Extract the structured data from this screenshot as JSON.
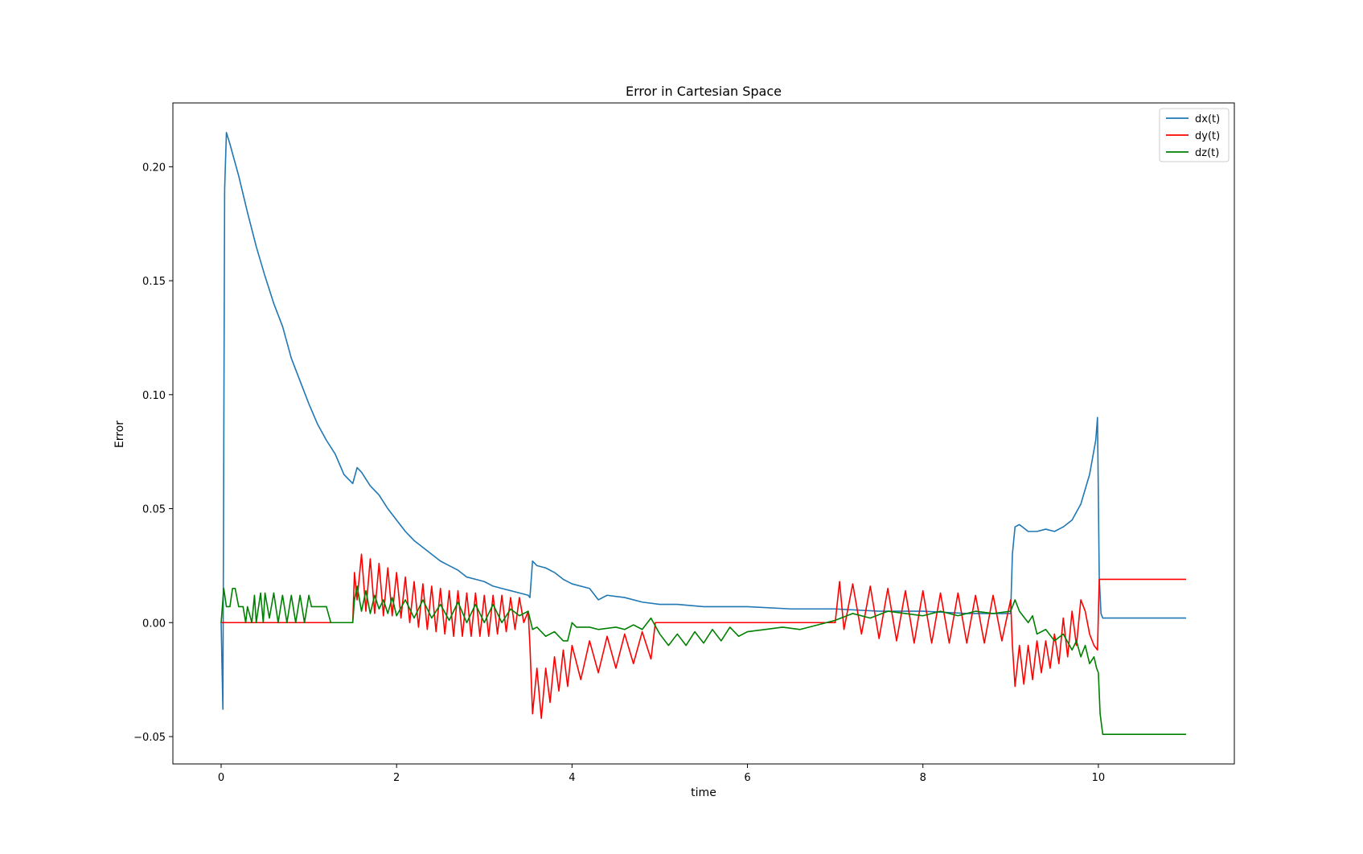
{
  "chart_data": {
    "type": "line",
    "title": "Error in Cartesian Space",
    "xlabel": "time",
    "ylabel": "Error",
    "xlim": [
      -0.55,
      11.55
    ],
    "ylim": [
      -0.062,
      0.228
    ],
    "xticks": [
      0,
      2,
      4,
      6,
      8,
      10
    ],
    "xtick_labels": [
      "0",
      "2",
      "4",
      "6",
      "8",
      "10"
    ],
    "yticks": [
      -0.05,
      0.0,
      0.05,
      0.1,
      0.15,
      0.2
    ],
    "ytick_labels": [
      "−0.05",
      "0.00",
      "0.05",
      "0.10",
      "0.15",
      "0.20"
    ],
    "grid": false,
    "legend": "top-right",
    "series": [
      {
        "name": "dx(t)",
        "color": "#1f77b4",
        "points": [
          [
            0,
            0
          ],
          [
            0.02,
            -0.038
          ],
          [
            0.04,
            0.19
          ],
          [
            0.06,
            0.215
          ],
          [
            0.1,
            0.21
          ],
          [
            0.15,
            0.203
          ],
          [
            0.2,
            0.196
          ],
          [
            0.3,
            0.18
          ],
          [
            0.4,
            0.165
          ],
          [
            0.5,
            0.152
          ],
          [
            0.6,
            0.14
          ],
          [
            0.7,
            0.13
          ],
          [
            0.8,
            0.116
          ],
          [
            0.9,
            0.106
          ],
          [
            1.0,
            0.096
          ],
          [
            1.1,
            0.087
          ],
          [
            1.2,
            0.08
          ],
          [
            1.3,
            0.074
          ],
          [
            1.4,
            0.065
          ],
          [
            1.5,
            0.061
          ],
          [
            1.55,
            0.068
          ],
          [
            1.6,
            0.066
          ],
          [
            1.7,
            0.06
          ],
          [
            1.8,
            0.056
          ],
          [
            1.9,
            0.05
          ],
          [
            2.0,
            0.045
          ],
          [
            2.1,
            0.04
          ],
          [
            2.2,
            0.036
          ],
          [
            2.3,
            0.033
          ],
          [
            2.4,
            0.03
          ],
          [
            2.5,
            0.027
          ],
          [
            2.6,
            0.025
          ],
          [
            2.7,
            0.023
          ],
          [
            2.8,
            0.02
          ],
          [
            2.9,
            0.019
          ],
          [
            3.0,
            0.018
          ],
          [
            3.1,
            0.016
          ],
          [
            3.2,
            0.015
          ],
          [
            3.3,
            0.014
          ],
          [
            3.4,
            0.013
          ],
          [
            3.5,
            0.012
          ],
          [
            3.52,
            0.011
          ],
          [
            3.55,
            0.027
          ],
          [
            3.6,
            0.025
          ],
          [
            3.7,
            0.024
          ],
          [
            3.8,
            0.022
          ],
          [
            3.9,
            0.019
          ],
          [
            4.0,
            0.017
          ],
          [
            4.2,
            0.015
          ],
          [
            4.3,
            0.01
          ],
          [
            4.4,
            0.012
          ],
          [
            4.6,
            0.011
          ],
          [
            4.8,
            0.009
          ],
          [
            5.0,
            0.008
          ],
          [
            5.2,
            0.008
          ],
          [
            5.5,
            0.007
          ],
          [
            6.0,
            0.007
          ],
          [
            6.5,
            0.006
          ],
          [
            7.0,
            0.006
          ],
          [
            7.5,
            0.005
          ],
          [
            8.0,
            0.005
          ],
          [
            8.5,
            0.004
          ],
          [
            9.0,
            0.004
          ],
          [
            9.02,
            0.03
          ],
          [
            9.05,
            0.042
          ],
          [
            9.1,
            0.043
          ],
          [
            9.2,
            0.04
          ],
          [
            9.3,
            0.04
          ],
          [
            9.4,
            0.041
          ],
          [
            9.5,
            0.04
          ],
          [
            9.6,
            0.042
          ],
          [
            9.7,
            0.045
          ],
          [
            9.8,
            0.052
          ],
          [
            9.9,
            0.065
          ],
          [
            9.97,
            0.08
          ],
          [
            9.99,
            0.09
          ],
          [
            10.01,
            0.02
          ],
          [
            10.03,
            0.004
          ],
          [
            10.05,
            0.002
          ],
          [
            11.0,
            0.002
          ]
        ]
      },
      {
        "name": "dy(t)",
        "color": "#ff0000",
        "points": [
          [
            0,
            0
          ],
          [
            1.5,
            0
          ],
          [
            1.52,
            0.022
          ],
          [
            1.55,
            0.01
          ],
          [
            1.6,
            0.03
          ],
          [
            1.65,
            0.005
          ],
          [
            1.7,
            0.028
          ],
          [
            1.75,
            0.004
          ],
          [
            1.8,
            0.026
          ],
          [
            1.85,
            0.003
          ],
          [
            1.9,
            0.024
          ],
          [
            1.95,
            0.003
          ],
          [
            2.0,
            0.022
          ],
          [
            2.05,
            0.002
          ],
          [
            2.1,
            0.02
          ],
          [
            2.15,
            0.0
          ],
          [
            2.2,
            0.018
          ],
          [
            2.25,
            -0.002
          ],
          [
            2.3,
            0.017
          ],
          [
            2.35,
            -0.003
          ],
          [
            2.4,
            0.016
          ],
          [
            2.45,
            -0.004
          ],
          [
            2.5,
            0.015
          ],
          [
            2.55,
            -0.005
          ],
          [
            2.6,
            0.014
          ],
          [
            2.65,
            -0.006
          ],
          [
            2.7,
            0.014
          ],
          [
            2.75,
            -0.006
          ],
          [
            2.8,
            0.013
          ],
          [
            2.85,
            -0.006
          ],
          [
            2.9,
            0.013
          ],
          [
            2.95,
            -0.006
          ],
          [
            3.0,
            0.012
          ],
          [
            3.05,
            -0.006
          ],
          [
            3.1,
            0.012
          ],
          [
            3.15,
            -0.005
          ],
          [
            3.2,
            0.012
          ],
          [
            3.25,
            -0.004
          ],
          [
            3.3,
            0.011
          ],
          [
            3.35,
            -0.003
          ],
          [
            3.4,
            0.011
          ],
          [
            3.45,
            0.0
          ],
          [
            3.5,
            0.005
          ],
          [
            3.52,
            -0.01
          ],
          [
            3.55,
            -0.04
          ],
          [
            3.6,
            -0.02
          ],
          [
            3.65,
            -0.042
          ],
          [
            3.7,
            -0.02
          ],
          [
            3.75,
            -0.035
          ],
          [
            3.8,
            -0.015
          ],
          [
            3.85,
            -0.03
          ],
          [
            3.9,
            -0.012
          ],
          [
            3.95,
            -0.028
          ],
          [
            4.0,
            -0.01
          ],
          [
            4.1,
            -0.025
          ],
          [
            4.2,
            -0.008
          ],
          [
            4.3,
            -0.022
          ],
          [
            4.4,
            -0.006
          ],
          [
            4.5,
            -0.02
          ],
          [
            4.6,
            -0.005
          ],
          [
            4.7,
            -0.018
          ],
          [
            4.8,
            -0.004
          ],
          [
            4.9,
            -0.016
          ],
          [
            4.95,
            0.0
          ],
          [
            5.0,
            0.0
          ],
          [
            7.0,
            0.0
          ],
          [
            7.05,
            0.018
          ],
          [
            7.1,
            -0.003
          ],
          [
            7.2,
            0.017
          ],
          [
            7.3,
            -0.005
          ],
          [
            7.4,
            0.016
          ],
          [
            7.5,
            -0.007
          ],
          [
            7.6,
            0.015
          ],
          [
            7.7,
            -0.008
          ],
          [
            7.8,
            0.014
          ],
          [
            7.9,
            -0.009
          ],
          [
            8.0,
            0.014
          ],
          [
            8.1,
            -0.009
          ],
          [
            8.2,
            0.013
          ],
          [
            8.3,
            -0.009
          ],
          [
            8.4,
            0.013
          ],
          [
            8.5,
            -0.009
          ],
          [
            8.6,
            0.012
          ],
          [
            8.7,
            -0.009
          ],
          [
            8.8,
            0.012
          ],
          [
            8.9,
            -0.008
          ],
          [
            9.0,
            0.01
          ],
          [
            9.02,
            -0.01
          ],
          [
            9.05,
            -0.028
          ],
          [
            9.1,
            -0.01
          ],
          [
            9.15,
            -0.027
          ],
          [
            9.2,
            -0.01
          ],
          [
            9.25,
            -0.025
          ],
          [
            9.3,
            -0.008
          ],
          [
            9.35,
            -0.022
          ],
          [
            9.4,
            -0.008
          ],
          [
            9.45,
            -0.02
          ],
          [
            9.5,
            -0.005
          ],
          [
            9.55,
            -0.018
          ],
          [
            9.6,
            0.002
          ],
          [
            9.65,
            -0.015
          ],
          [
            9.7,
            0.005
          ],
          [
            9.75,
            -0.01
          ],
          [
            9.8,
            0.01
          ],
          [
            9.85,
            0.005
          ],
          [
            9.9,
            -0.005
          ],
          [
            9.95,
            -0.01
          ],
          [
            9.99,
            -0.012
          ],
          [
            10.01,
            0.019
          ],
          [
            11.0,
            0.019
          ]
        ]
      },
      {
        "name": "dz(t)",
        "color": "#008000",
        "points": [
          [
            0,
            0
          ],
          [
            0.03,
            0.015
          ],
          [
            0.06,
            0.007
          ],
          [
            0.1,
            0.007
          ],
          [
            0.13,
            0.015
          ],
          [
            0.16,
            0.015
          ],
          [
            0.2,
            0.007
          ],
          [
            0.25,
            0.007
          ],
          [
            0.28,
            0.0
          ],
          [
            0.3,
            0.007
          ],
          [
            0.35,
            0.0
          ],
          [
            0.38,
            0.012
          ],
          [
            0.4,
            0.0
          ],
          [
            0.45,
            0.013
          ],
          [
            0.48,
            0.0
          ],
          [
            0.5,
            0.013
          ],
          [
            0.55,
            0.002
          ],
          [
            0.6,
            0.013
          ],
          [
            0.65,
            0.0
          ],
          [
            0.7,
            0.012
          ],
          [
            0.75,
            0.0
          ],
          [
            0.8,
            0.012
          ],
          [
            0.85,
            0.0
          ],
          [
            0.9,
            0.012
          ],
          [
            0.95,
            0.0
          ],
          [
            1.0,
            0.012
          ],
          [
            1.03,
            0.007
          ],
          [
            1.2,
            0.007
          ],
          [
            1.25,
            0.0
          ],
          [
            1.5,
            0.0
          ],
          [
            1.52,
            0.01
          ],
          [
            1.55,
            0.016
          ],
          [
            1.6,
            0.005
          ],
          [
            1.65,
            0.014
          ],
          [
            1.7,
            0.004
          ],
          [
            1.75,
            0.012
          ],
          [
            1.8,
            0.006
          ],
          [
            1.85,
            0.01
          ],
          [
            1.9,
            0.004
          ],
          [
            1.95,
            0.011
          ],
          [
            2.0,
            0.003
          ],
          [
            2.1,
            0.01
          ],
          [
            2.2,
            0.002
          ],
          [
            2.3,
            0.01
          ],
          [
            2.4,
            0.002
          ],
          [
            2.5,
            0.008
          ],
          [
            2.6,
            0.001
          ],
          [
            2.7,
            0.009
          ],
          [
            2.8,
            0.0
          ],
          [
            2.9,
            0.008
          ],
          [
            3.0,
            0.0
          ],
          [
            3.1,
            0.008
          ],
          [
            3.2,
            0.0
          ],
          [
            3.3,
            0.006
          ],
          [
            3.4,
            0.003
          ],
          [
            3.5,
            0.005
          ],
          [
            3.55,
            -0.003
          ],
          [
            3.6,
            -0.002
          ],
          [
            3.7,
            -0.006
          ],
          [
            3.8,
            -0.004
          ],
          [
            3.9,
            -0.008
          ],
          [
            3.95,
            -0.008
          ],
          [
            4.0,
            0.0
          ],
          [
            4.05,
            -0.002
          ],
          [
            4.2,
            -0.002
          ],
          [
            4.3,
            -0.003
          ],
          [
            4.5,
            -0.002
          ],
          [
            4.6,
            -0.003
          ],
          [
            4.7,
            -0.001
          ],
          [
            4.8,
            -0.003
          ],
          [
            4.9,
            0.002
          ],
          [
            5.0,
            -0.005
          ],
          [
            5.1,
            -0.01
          ],
          [
            5.2,
            -0.005
          ],
          [
            5.3,
            -0.01
          ],
          [
            5.4,
            -0.004
          ],
          [
            5.5,
            -0.009
          ],
          [
            5.6,
            -0.003
          ],
          [
            5.7,
            -0.008
          ],
          [
            5.8,
            -0.002
          ],
          [
            5.9,
            -0.006
          ],
          [
            6.0,
            -0.004
          ],
          [
            6.2,
            -0.003
          ],
          [
            6.4,
            -0.002
          ],
          [
            6.6,
            -0.003
          ],
          [
            6.8,
            -0.001
          ],
          [
            7.0,
            0.001
          ],
          [
            7.2,
            0.004
          ],
          [
            7.4,
            0.002
          ],
          [
            7.6,
            0.005
          ],
          [
            7.8,
            0.004
          ],
          [
            8.0,
            0.003
          ],
          [
            8.2,
            0.005
          ],
          [
            8.4,
            0.003
          ],
          [
            8.6,
            0.005
          ],
          [
            8.8,
            0.004
          ],
          [
            9.0,
            0.005
          ],
          [
            9.05,
            0.01
          ],
          [
            9.1,
            0.005
          ],
          [
            9.2,
            0.0
          ],
          [
            9.25,
            0.003
          ],
          [
            9.3,
            -0.005
          ],
          [
            9.4,
            -0.003
          ],
          [
            9.5,
            -0.008
          ],
          [
            9.6,
            -0.005
          ],
          [
            9.7,
            -0.012
          ],
          [
            9.75,
            -0.008
          ],
          [
            9.8,
            -0.015
          ],
          [
            9.85,
            -0.01
          ],
          [
            9.9,
            -0.018
          ],
          [
            9.95,
            -0.015
          ],
          [
            9.98,
            -0.02
          ],
          [
            10.0,
            -0.022
          ],
          [
            10.02,
            -0.04
          ],
          [
            10.05,
            -0.049
          ],
          [
            11.0,
            -0.049
          ]
        ]
      }
    ]
  }
}
